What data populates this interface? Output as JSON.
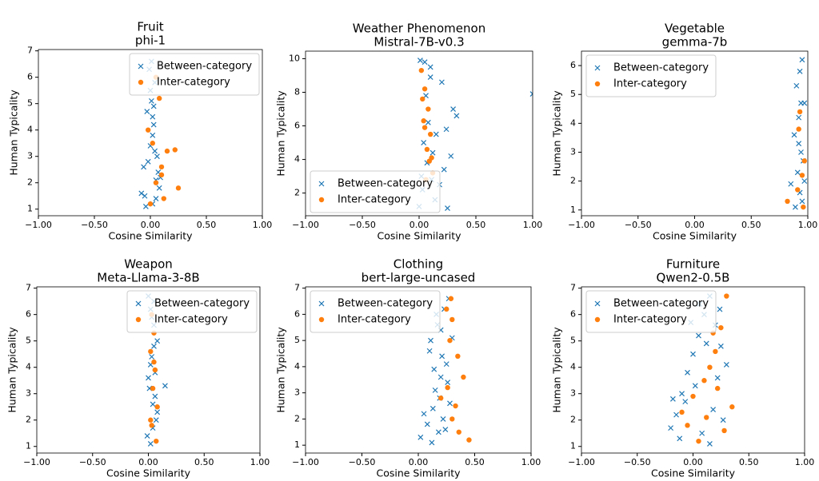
{
  "chart_data": [
    {
      "type": "scatter",
      "title": "Fruit",
      "subtitle": "phi-1",
      "xlabel": "Cosine Similarity",
      "ylabel": "Human Typicality",
      "legend": "upper right",
      "xlim": [
        -1,
        1
      ],
      "xticks": [
        {
          "value": -1,
          "label": "−1.00"
        },
        {
          "value": -0.5,
          "label": "−0.50"
        },
        {
          "value": 0,
          "label": "0.00"
        },
        {
          "value": 0.5,
          "label": "0.50"
        },
        {
          "value": 1,
          "label": "1.00"
        }
      ],
      "ylim": [
        0.75,
        7.05
      ],
      "yticks": [
        1,
        2,
        3,
        4,
        5,
        6,
        7
      ],
      "series": [
        {
          "name": "Between-category",
          "color": "#1f77b4",
          "marker": "x",
          "x": [
            -0.05,
            0.02,
            0.05,
            -0.02,
            0.08,
            0.0,
            0.03,
            -0.08,
            0.06,
            0.01,
            -0.03,
            0.04,
            0.07,
            -0.01,
            0.02,
            0.09,
            -0.04,
            0.03,
            0.0,
            0.05,
            -0.06,
            0.01,
            0.04,
            0.02
          ],
          "y": [
            1.5,
            1.2,
            2.1,
            2.8,
            1.8,
            3.4,
            4.2,
            1.6,
            3.0,
            5.1,
            4.7,
            5.8,
            2.4,
            6.3,
            3.8,
            2.2,
            1.1,
            4.9,
            5.5,
            1.4,
            2.6,
            6.6,
            3.2,
            4.5
          ]
        },
        {
          "name": "Inter-category",
          "color": "#ff7f0e",
          "marker": "o",
          "x": [
            0.0,
            0.05,
            0.1,
            0.02,
            0.15,
            0.25,
            0.12,
            -0.02,
            0.08,
            0.22,
            0.05,
            0.1
          ],
          "y": [
            1.2,
            2.0,
            2.6,
            3.5,
            3.2,
            1.8,
            1.4,
            4.0,
            5.2,
            3.25,
            6.0,
            2.3
          ]
        }
      ]
    },
    {
      "type": "scatter",
      "title": "Weather Phenomenon",
      "subtitle": "Mistral-7B-v0.3",
      "xlabel": "Cosine Similarity",
      "ylabel": "Human Typicality",
      "legend": "lower left",
      "xlim": [
        -1,
        1
      ],
      "xticks": [
        {
          "value": -1,
          "label": "−1.00"
        },
        {
          "value": -0.5,
          "label": "−0.50"
        },
        {
          "value": 0,
          "label": "0.00"
        },
        {
          "value": 0.5,
          "label": "0.50"
        },
        {
          "value": 1,
          "label": "1.00"
        }
      ],
      "ylim": [
        0.65,
        10.45
      ],
      "yticks": [
        2,
        4,
        6,
        8,
        10
      ],
      "series": [
        {
          "name": "Between-category",
          "color": "#1f77b4",
          "marker": "x",
          "x": [
            0.0,
            0.05,
            0.1,
            0.2,
            0.3,
            0.02,
            0.15,
            0.25,
            0.08,
            0.12,
            0.33,
            0.03,
            0.18,
            0.06,
            0.22,
            0.1,
            0.28,
            0.04,
            0.14,
            0.01,
            0.07,
            1.0,
            0.24,
            0.11
          ],
          "y": [
            1.2,
            9.8,
            9.5,
            8.6,
            7.0,
            3.0,
            5.5,
            1.1,
            6.2,
            4.4,
            6.6,
            2.2,
            2.5,
            7.8,
            3.4,
            8.9,
            4.2,
            5.0,
            1.6,
            9.9,
            3.8,
            7.9,
            5.8,
            2.8
          ]
        },
        {
          "name": "Inter-category",
          "color": "#ff7f0e",
          "marker": "o",
          "x": [
            0.02,
            0.05,
            0.08,
            0.1,
            0.04,
            0.07,
            0.12,
            0.06,
            0.09,
            0.03,
            0.11,
            0.05
          ],
          "y": [
            9.3,
            8.2,
            7.0,
            5.5,
            6.3,
            4.6,
            3.2,
            2.8,
            3.9,
            7.6,
            4.1,
            5.9
          ]
        }
      ]
    },
    {
      "type": "scatter",
      "title": "Vegetable",
      "subtitle": "gemma-7b",
      "xlabel": "Cosine Similarity",
      "ylabel": "Human Typicality",
      "legend": "upper left",
      "xlim": [
        -1,
        1
      ],
      "xticks": [
        {
          "value": -1,
          "label": "−1.00"
        },
        {
          "value": -0.5,
          "label": "−0.50"
        },
        {
          "value": 0,
          "label": "0.00"
        },
        {
          "value": 0.5,
          "label": "0.50"
        },
        {
          "value": 1,
          "label": "1.00"
        }
      ],
      "ylim": [
        0.8,
        6.5
      ],
      "yticks": [
        1,
        2,
        3,
        4,
        5,
        6
      ],
      "series": [
        {
          "name": "Between-category",
          "color": "#1f77b4",
          "marker": "x",
          "x": [
            0.95,
            0.93,
            0.9,
            0.97,
            0.92,
            0.88,
            0.94,
            0.96,
            0.91,
            0.85,
            0.93,
            0.95,
            0.89,
            0.97,
            0.92,
            0.94
          ],
          "y": [
            6.2,
            5.8,
            5.3,
            4.7,
            4.2,
            3.6,
            3.0,
            2.7,
            2.3,
            1.9,
            1.6,
            1.3,
            1.1,
            2.0,
            3.3,
            4.7
          ]
        },
        {
          "name": "Inter-category",
          "color": "#ff7f0e",
          "marker": "o",
          "x": [
            0.93,
            0.92,
            0.97,
            0.95,
            0.91,
            0.82,
            0.96
          ],
          "y": [
            4.4,
            3.8,
            2.7,
            2.2,
            1.7,
            1.3,
            1.1
          ]
        }
      ]
    },
    {
      "type": "scatter",
      "title": "Weapon",
      "subtitle": "Meta-Llama-3-8B",
      "xlabel": "Cosine Similarity",
      "ylabel": "Human Typicality",
      "legend": "upper right",
      "xlim": [
        -1,
        1
      ],
      "xticks": [
        {
          "value": -1,
          "label": "−1.00"
        },
        {
          "value": -0.5,
          "label": "−0.50"
        },
        {
          "value": 0,
          "label": "0.00"
        },
        {
          "value": 0.5,
          "label": "0.50"
        },
        {
          "value": 1,
          "label": "1.00"
        }
      ],
      "ylim": [
        0.75,
        7.05
      ],
      "yticks": [
        1,
        2,
        3,
        4,
        5,
        6,
        7
      ],
      "series": [
        {
          "name": "Between-category",
          "color": "#1f77b4",
          "marker": "x",
          "x": [
            0.0,
            0.02,
            0.05,
            0.08,
            0.03,
            0.06,
            0.01,
            0.04,
            0.07,
            -0.01,
            0.15,
            0.02,
            0.05,
            0.03,
            0.06,
            0.0,
            0.04,
            0.08,
            0.02,
            0.05
          ],
          "y": [
            6.7,
            6.2,
            5.6,
            5.0,
            4.4,
            3.8,
            3.2,
            2.6,
            2.0,
            1.4,
            3.3,
            1.1,
            4.8,
            5.9,
            2.9,
            3.6,
            1.7,
            2.3,
            4.1,
            6.5
          ]
        },
        {
          "name": "Inter-category",
          "color": "#ff7f0e",
          "marker": "o",
          "x": [
            0.03,
            0.05,
            0.02,
            0.06,
            0.04,
            0.08,
            0.03,
            0.07,
            0.05,
            0.02
          ],
          "y": [
            6.0,
            5.3,
            4.6,
            3.9,
            3.2,
            2.5,
            1.8,
            1.2,
            4.2,
            2.0
          ]
        }
      ]
    },
    {
      "type": "scatter",
      "title": "Clothing",
      "subtitle": "bert-large-uncased",
      "xlabel": "Cosine Similarity",
      "ylabel": "Human Typicality",
      "legend": "upper left",
      "xlim": [
        -1,
        1
      ],
      "xticks": [
        {
          "value": -1,
          "label": "−1.00"
        },
        {
          "value": -0.5,
          "label": "−0.50"
        },
        {
          "value": 0,
          "label": "0.00"
        },
        {
          "value": 0.5,
          "label": "0.50"
        },
        {
          "value": 1,
          "label": "1.00"
        }
      ],
      "ylim": [
        0.7,
        7.05
      ],
      "yticks": [
        1,
        2,
        3,
        4,
        5,
        6,
        7
      ],
      "series": [
        {
          "name": "Between-category",
          "color": "#1f77b4",
          "marker": "x",
          "x": [
            0.05,
            0.12,
            0.18,
            0.22,
            0.28,
            0.15,
            0.2,
            0.25,
            0.1,
            0.3,
            0.17,
            0.23,
            0.08,
            0.19,
            0.26,
            0.14,
            0.21,
            0.11,
            0.27,
            0.16,
            0.02,
            0.24,
            0.13,
            0.2
          ],
          "y": [
            2.2,
            1.1,
            1.5,
            2.0,
            2.6,
            3.1,
            3.6,
            4.1,
            4.6,
            5.1,
            5.6,
            6.2,
            1.8,
            2.8,
            3.4,
            3.9,
            4.4,
            5.0,
            6.6,
            6.0,
            1.3,
            1.6,
            2.4,
            5.4
          ]
        },
        {
          "name": "Inter-category",
          "color": "#ff7f0e",
          "marker": "o",
          "x": [
            0.25,
            0.3,
            0.28,
            0.35,
            0.4,
            0.45,
            0.2,
            0.33,
            0.3,
            0.36,
            0.26,
            0.29
          ],
          "y": [
            6.2,
            5.8,
            5.0,
            4.4,
            3.6,
            1.2,
            2.8,
            2.5,
            2.0,
            1.5,
            3.2,
            6.6
          ]
        }
      ]
    },
    {
      "type": "scatter",
      "title": "Furniture",
      "subtitle": "Qwen2-0.5B",
      "xlabel": "Cosine Similarity",
      "ylabel": "Human Typicality",
      "legend": "upper left",
      "xlim": [
        -1,
        1
      ],
      "xticks": [
        {
          "value": -1,
          "label": "−1.00"
        },
        {
          "value": -0.5,
          "label": "−0.50"
        },
        {
          "value": 0,
          "label": "0.00"
        },
        {
          "value": 0.5,
          "label": "0.50"
        },
        {
          "value": 1,
          "label": "1.00"
        }
      ],
      "ylim": [
        0.75,
        7.05
      ],
      "yticks": [
        1,
        2,
        3,
        4,
        5,
        6,
        7
      ],
      "series": [
        {
          "name": "Between-category",
          "color": "#1f77b4",
          "marker": "x",
          "x": [
            -0.2,
            -0.15,
            -0.1,
            -0.05,
            0.0,
            0.05,
            0.1,
            0.15,
            0.2,
            0.25,
            0.3,
            -0.12,
            0.08,
            0.18,
            0.02,
            -0.07,
            0.22,
            0.12,
            0.27,
            -0.02,
            0.15,
            0.06,
            -0.18,
            0.24
          ],
          "y": [
            1.7,
            2.2,
            3.0,
            3.8,
            4.5,
            5.2,
            6.0,
            6.7,
            5.6,
            4.8,
            4.1,
            1.3,
            1.5,
            2.4,
            3.3,
            2.7,
            3.6,
            4.9,
            2.0,
            5.7,
            1.1,
            6.4,
            2.8,
            6.2
          ]
        },
        {
          "name": "Inter-category",
          "color": "#ff7f0e",
          "marker": "o",
          "x": [
            -0.1,
            0.0,
            0.05,
            0.1,
            0.15,
            0.2,
            0.25,
            0.3,
            0.35,
            0.28,
            0.22,
            0.18,
            -0.05,
            0.12
          ],
          "y": [
            2.3,
            2.9,
            1.2,
            3.5,
            4.0,
            4.6,
            5.5,
            6.7,
            2.5,
            1.6,
            3.2,
            5.3,
            1.8,
            2.1
          ]
        }
      ]
    }
  ]
}
